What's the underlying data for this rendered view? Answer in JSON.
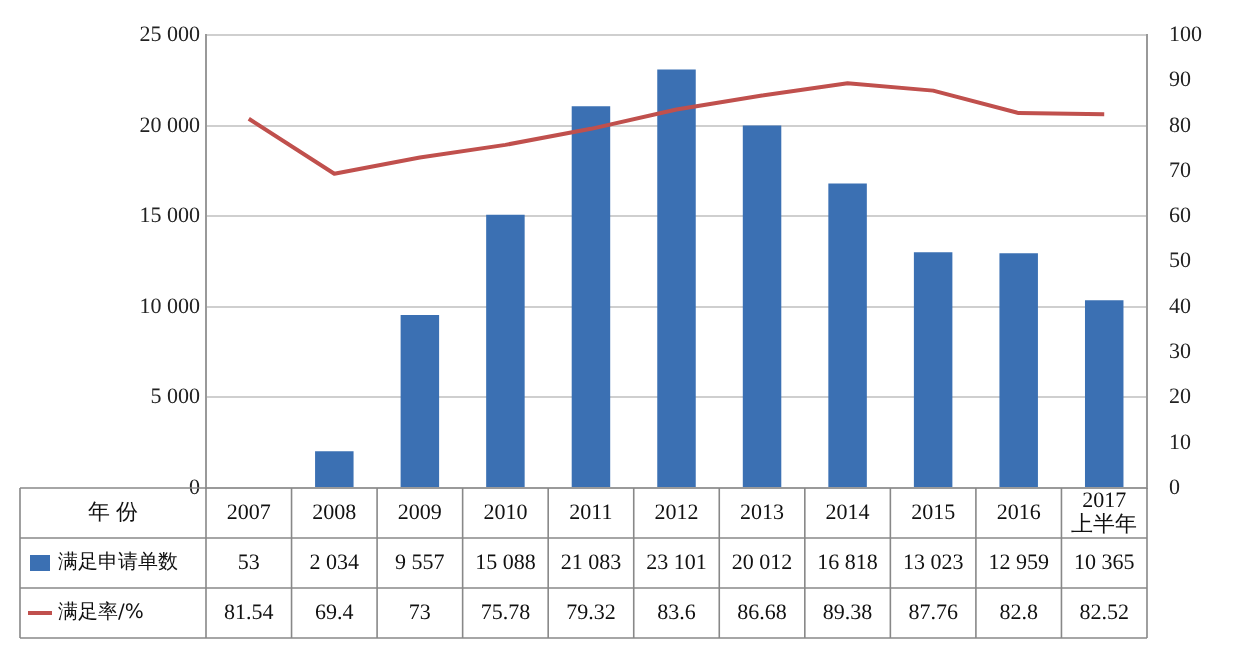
{
  "chart_data": {
    "type": "bar",
    "xlabel": "年 份",
    "categories": [
      "2007",
      "2008",
      "2009",
      "2010",
      "2011",
      "2012",
      "2013",
      "2014",
      "2015",
      "2016",
      "2017\n上半年"
    ],
    "series": [
      {
        "name": "满足申请单数",
        "axis": "y",
        "color": "#3b70b3",
        "values": [
          53,
          2034,
          9557,
          15088,
          21083,
          23101,
          20012,
          16818,
          13023,
          12959,
          10365
        ],
        "value_labels": [
          "53",
          "2 034",
          "9 557",
          "15 088",
          "21 083",
          "23 101",
          "20 012",
          "16 818",
          "13 023",
          "12 959",
          "10 365"
        ]
      },
      {
        "name": "满足率/%",
        "type": "line",
        "axis": "y2",
        "color": "#c0504d",
        "marker": "none",
        "values": [
          81.54,
          69.4,
          73,
          75.78,
          79.32,
          83.6,
          86.68,
          89.38,
          87.76,
          82.8,
          82.52
        ],
        "value_labels": [
          "81.54",
          "69.4",
          "73",
          "75.78",
          "79.32",
          "83.6",
          "86.68",
          "89.38",
          "87.76",
          "82.8",
          "82.52"
        ]
      }
    ],
    "ylim": [
      0,
      25000
    ],
    "yticks": [
      {
        "value": 0,
        "label": "0"
      },
      {
        "value": 5000,
        "label": "5 000"
      },
      {
        "value": 10000,
        "label": "10 000"
      },
      {
        "value": 15000,
        "label": "15 000"
      },
      {
        "value": 20000,
        "label": "20 000"
      },
      {
        "value": 25000,
        "label": "25 000"
      }
    ],
    "y2lim": [
      0,
      100
    ],
    "y2ticks": [
      0,
      10,
      20,
      30,
      40,
      50,
      60,
      70,
      80,
      90,
      100
    ],
    "grid": "y",
    "legend": "bottom"
  }
}
